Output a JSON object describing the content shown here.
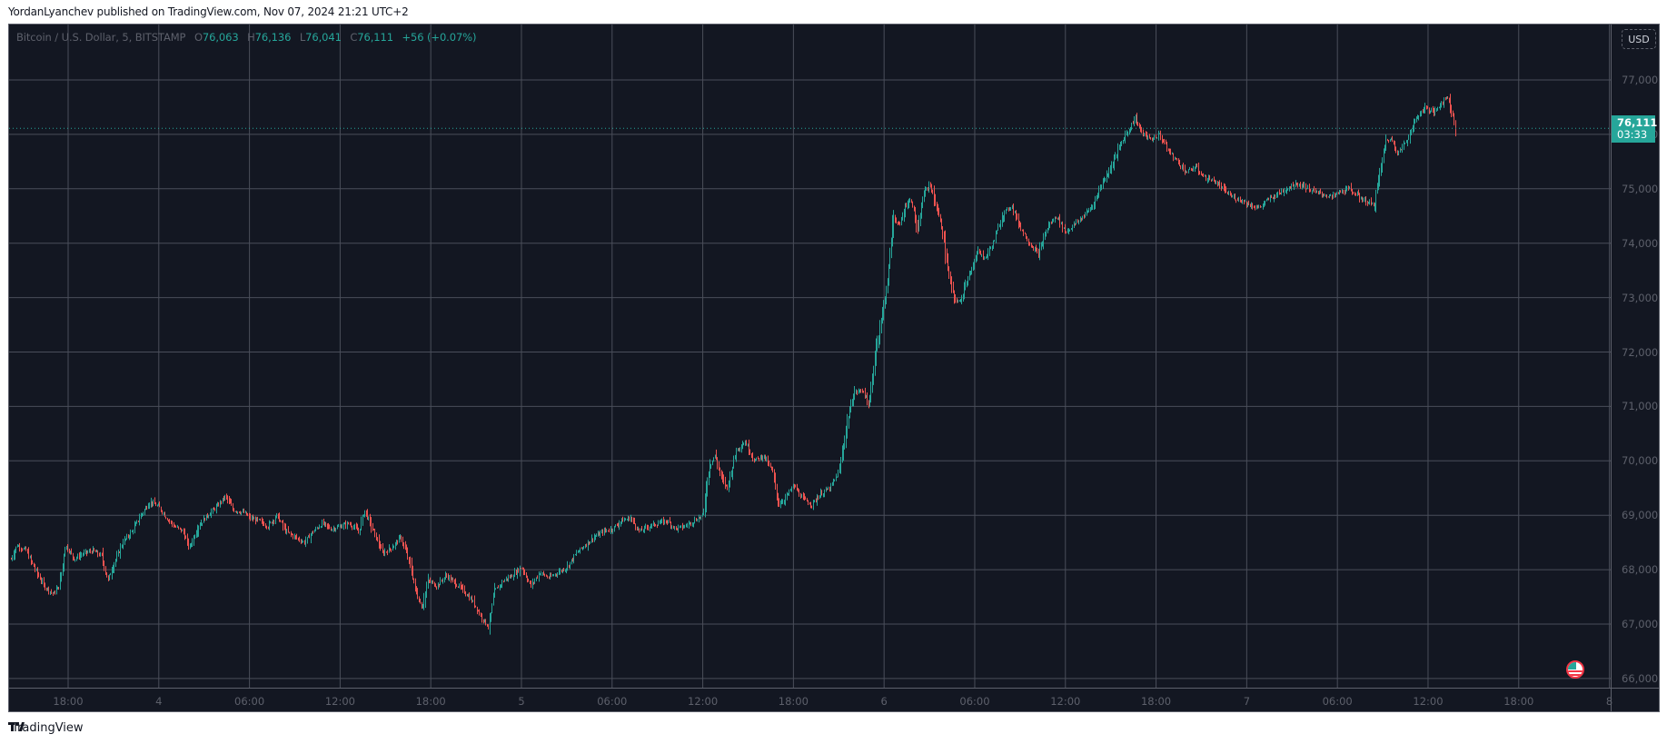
{
  "publisher_line": "YordanLyanchev published on TradingView.com, Nov 07, 2024 21:21 UTC+2",
  "legend": {
    "symbol": "Bitcoin / U.S. Dollar, 5, BITSTAMP",
    "o_label": "O",
    "o_value": "76,063",
    "h_label": "H",
    "h_value": "76,136",
    "l_label": "L",
    "l_value": "76,041",
    "c_label": "C",
    "c_value": "76,111",
    "change": "+56 (+0.07%)"
  },
  "currency_button": "USD",
  "last_price": {
    "value": "76,111",
    "countdown": "03:33"
  },
  "brand": {
    "logo": "TV",
    "name": "TradingView"
  },
  "colors": {
    "background": "#131722",
    "grid": "#4a4e5a",
    "up": "#26a69a",
    "down": "#ef5350",
    "axis_text": "#5d606b"
  },
  "chart_data": {
    "type": "candlestick",
    "title": "Bitcoin / U.S. Dollar, 5, BITSTAMP",
    "interval": "5m",
    "xlabel": "",
    "ylabel": "USD",
    "ylim": [
      66000,
      77000
    ],
    "y_ticks": [
      "77,000",
      "76,000",
      "75,000",
      "74,000",
      "73,000",
      "72,000",
      "71,000",
      "70,000",
      "69,000",
      "68,000",
      "67,000",
      "66,000"
    ],
    "x_ticks": [
      "18:00",
      "4",
      "06:00",
      "12:00",
      "18:00",
      "5",
      "06:00",
      "12:00",
      "18:00",
      "6",
      "06:00",
      "12:00",
      "18:00",
      "7",
      "06:00",
      "12:00",
      "18:00",
      "8"
    ],
    "grid": true,
    "last_close": 76111,
    "x_unit": "hours since Nov 3 18:00",
    "path": [
      [
        -3.8,
        68200
      ],
      [
        -3.4,
        68450
      ],
      [
        -2.8,
        68350
      ],
      [
        -2.2,
        68000
      ],
      [
        -1.6,
        67700
      ],
      [
        -1.0,
        67550
      ],
      [
        -0.6,
        67700
      ],
      [
        -0.2,
        68450
      ],
      [
        0.4,
        68200
      ],
      [
        1.0,
        68300
      ],
      [
        1.6,
        68350
      ],
      [
        2.2,
        68250
      ],
      [
        2.6,
        67800
      ],
      [
        3.0,
        68100
      ],
      [
        3.6,
        68500
      ],
      [
        4.2,
        68700
      ],
      [
        4.8,
        69000
      ],
      [
        5.4,
        69250
      ],
      [
        6.0,
        69150
      ],
      [
        6.5,
        68950
      ],
      [
        7.0,
        68800
      ],
      [
        7.6,
        68700
      ],
      [
        8.0,
        68400
      ],
      [
        8.6,
        68800
      ],
      [
        9.2,
        69000
      ],
      [
        9.8,
        69150
      ],
      [
        10.4,
        69350
      ],
      [
        10.9,
        69100
      ],
      [
        11.6,
        69050
      ],
      [
        12.0,
        68950
      ],
      [
        12.6,
        68900
      ],
      [
        13.2,
        68800
      ],
      [
        13.8,
        69000
      ],
      [
        14.4,
        68700
      ],
      [
        15.0,
        68600
      ],
      [
        15.6,
        68500
      ],
      [
        16.2,
        68700
      ],
      [
        16.8,
        68850
      ],
      [
        17.4,
        68750
      ],
      [
        18.0,
        68800
      ],
      [
        18.6,
        68850
      ],
      [
        19.2,
        68700
      ],
      [
        19.6,
        69100
      ],
      [
        20.2,
        68700
      ],
      [
        20.8,
        68300
      ],
      [
        21.4,
        68400
      ],
      [
        22.0,
        68600
      ],
      [
        22.6,
        68100
      ],
      [
        23.0,
        67600
      ],
      [
        23.4,
        67300
      ],
      [
        23.8,
        67800
      ],
      [
        24.4,
        67700
      ],
      [
        25.0,
        67900
      ],
      [
        25.6,
        67750
      ],
      [
        26.2,
        67600
      ],
      [
        26.8,
        67400
      ],
      [
        27.4,
        67100
      ],
      [
        27.8,
        66950
      ],
      [
        28.2,
        67600
      ],
      [
        28.8,
        67800
      ],
      [
        29.4,
        67900
      ],
      [
        30.0,
        68050
      ],
      [
        30.6,
        67700
      ],
      [
        31.2,
        67950
      ],
      [
        31.8,
        67850
      ],
      [
        32.4,
        67950
      ],
      [
        33.0,
        68050
      ],
      [
        33.6,
        68300
      ],
      [
        34.2,
        68450
      ],
      [
        34.8,
        68600
      ],
      [
        35.4,
        68700
      ],
      [
        36.0,
        68750
      ],
      [
        36.6,
        68900
      ],
      [
        37.2,
        68950
      ],
      [
        37.8,
        68700
      ],
      [
        38.4,
        68800
      ],
      [
        39.0,
        68850
      ],
      [
        39.6,
        68900
      ],
      [
        40.2,
        68750
      ],
      [
        40.8,
        68800
      ],
      [
        41.4,
        68900
      ],
      [
        42.0,
        69000
      ],
      [
        42.4,
        69900
      ],
      [
        42.8,
        70100
      ],
      [
        43.2,
        69700
      ],
      [
        43.6,
        69500
      ],
      [
        44.2,
        70200
      ],
      [
        44.8,
        70350
      ],
      [
        45.4,
        70000
      ],
      [
        46.0,
        70100
      ],
      [
        46.6,
        69800
      ],
      [
        47.0,
        69200
      ],
      [
        47.4,
        69300
      ],
      [
        48.0,
        69550
      ],
      [
        48.6,
        69300
      ],
      [
        49.2,
        69200
      ],
      [
        49.8,
        69400
      ],
      [
        50.4,
        69500
      ],
      [
        51.0,
        69800
      ],
      [
        51.6,
        70800
      ],
      [
        52.0,
        71250
      ],
      [
        52.6,
        71300
      ],
      [
        53.0,
        71000
      ],
      [
        53.4,
        72000
      ],
      [
        53.8,
        72600
      ],
      [
        54.2,
        73300
      ],
      [
        54.6,
        74500
      ],
      [
        55.0,
        74300
      ],
      [
        55.4,
        74700
      ],
      [
        55.8,
        74800
      ],
      [
        56.2,
        74200
      ],
      [
        56.6,
        74900
      ],
      [
        57.0,
        75100
      ],
      [
        57.4,
        74700
      ],
      [
        57.8,
        74300
      ],
      [
        58.2,
        73500
      ],
      [
        58.6,
        73000
      ],
      [
        59.0,
        72900
      ],
      [
        59.4,
        73300
      ],
      [
        59.8,
        73500
      ],
      [
        60.2,
        73900
      ],
      [
        60.6,
        73700
      ],
      [
        61.2,
        74000
      ],
      [
        61.8,
        74500
      ],
      [
        62.4,
        74700
      ],
      [
        63.0,
        74300
      ],
      [
        63.6,
        74000
      ],
      [
        64.2,
        73800
      ],
      [
        64.8,
        74300
      ],
      [
        65.4,
        74500
      ],
      [
        66.0,
        74200
      ],
      [
        66.6,
        74350
      ],
      [
        67.2,
        74500
      ],
      [
        67.8,
        74700
      ],
      [
        68.4,
        75100
      ],
      [
        69.0,
        75400
      ],
      [
        69.6,
        75800
      ],
      [
        70.2,
        76100
      ],
      [
        70.6,
        76300
      ],
      [
        71.0,
        76050
      ],
      [
        71.6,
        75900
      ],
      [
        72.2,
        76000
      ],
      [
        72.8,
        75700
      ],
      [
        73.4,
        75500
      ],
      [
        74.0,
        75300
      ],
      [
        74.6,
        75400
      ],
      [
        75.2,
        75200
      ],
      [
        75.8,
        75150
      ],
      [
        76.4,
        75000
      ],
      [
        77.0,
        74850
      ],
      [
        77.6,
        74800
      ],
      [
        78.2,
        74700
      ],
      [
        78.8,
        74650
      ],
      [
        79.4,
        74800
      ],
      [
        80.0,
        74900
      ],
      [
        80.6,
        75000
      ],
      [
        81.2,
        75100
      ],
      [
        81.8,
        75050
      ],
      [
        82.4,
        74950
      ],
      [
        83.0,
        74900
      ],
      [
        83.6,
        74850
      ],
      [
        84.2,
        74950
      ],
      [
        84.8,
        75000
      ],
      [
        85.4,
        74850
      ],
      [
        86.0,
        74750
      ],
      [
        86.4,
        74700
      ],
      [
        86.8,
        75300
      ],
      [
        87.2,
        75900
      ],
      [
        87.6,
        75900
      ],
      [
        88.0,
        75650
      ],
      [
        88.6,
        75900
      ],
      [
        89.2,
        76300
      ],
      [
        89.8,
        76500
      ],
      [
        90.4,
        76400
      ],
      [
        90.9,
        76600
      ],
      [
        91.3,
        76700
      ],
      [
        91.8,
        76111
      ]
    ]
  }
}
